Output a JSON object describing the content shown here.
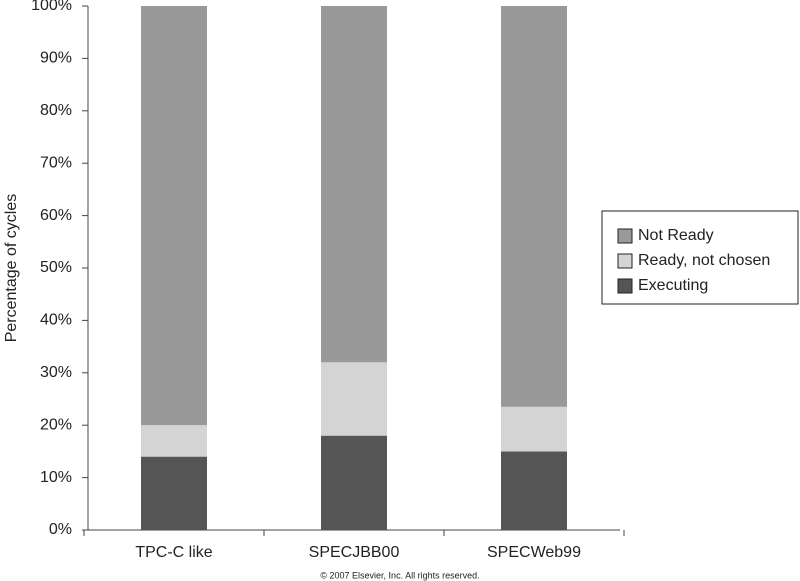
{
  "chart_data": {
    "type": "stacked-bar",
    "y_label": "Percentage of cycles",
    "footnote": "© 2007 Elsevier, Inc. All rights reserved.",
    "categories": [
      "TPC-C like",
      "SPECJBB00",
      "SPECWeb99"
    ],
    "series": [
      {
        "name": "Executing",
        "color": "#555555",
        "values": [
          14,
          18,
          15
        ]
      },
      {
        "name": "Ready, not chosen",
        "color": "#d4d4d4",
        "values": [
          6,
          14,
          8.5
        ]
      },
      {
        "name": "Not Ready",
        "color": "#999999",
        "values": [
          80,
          68,
          76.5
        ]
      }
    ],
    "ylim": [
      0,
      100
    ],
    "yticks": [
      {
        "value": 0,
        "label": "0%"
      },
      {
        "value": 10,
        "label": "10%"
      },
      {
        "value": 20,
        "label": "20%"
      },
      {
        "value": 30,
        "label": "30%"
      },
      {
        "value": 40,
        "label": "40%"
      },
      {
        "value": 50,
        "label": "50%"
      },
      {
        "value": 60,
        "label": "60%"
      },
      {
        "value": 70,
        "label": "70%"
      },
      {
        "value": 80,
        "label": "80%"
      },
      {
        "value": 90,
        "label": "90%"
      },
      {
        "value": 100,
        "label": "100%"
      }
    ],
    "legend": "right"
  }
}
